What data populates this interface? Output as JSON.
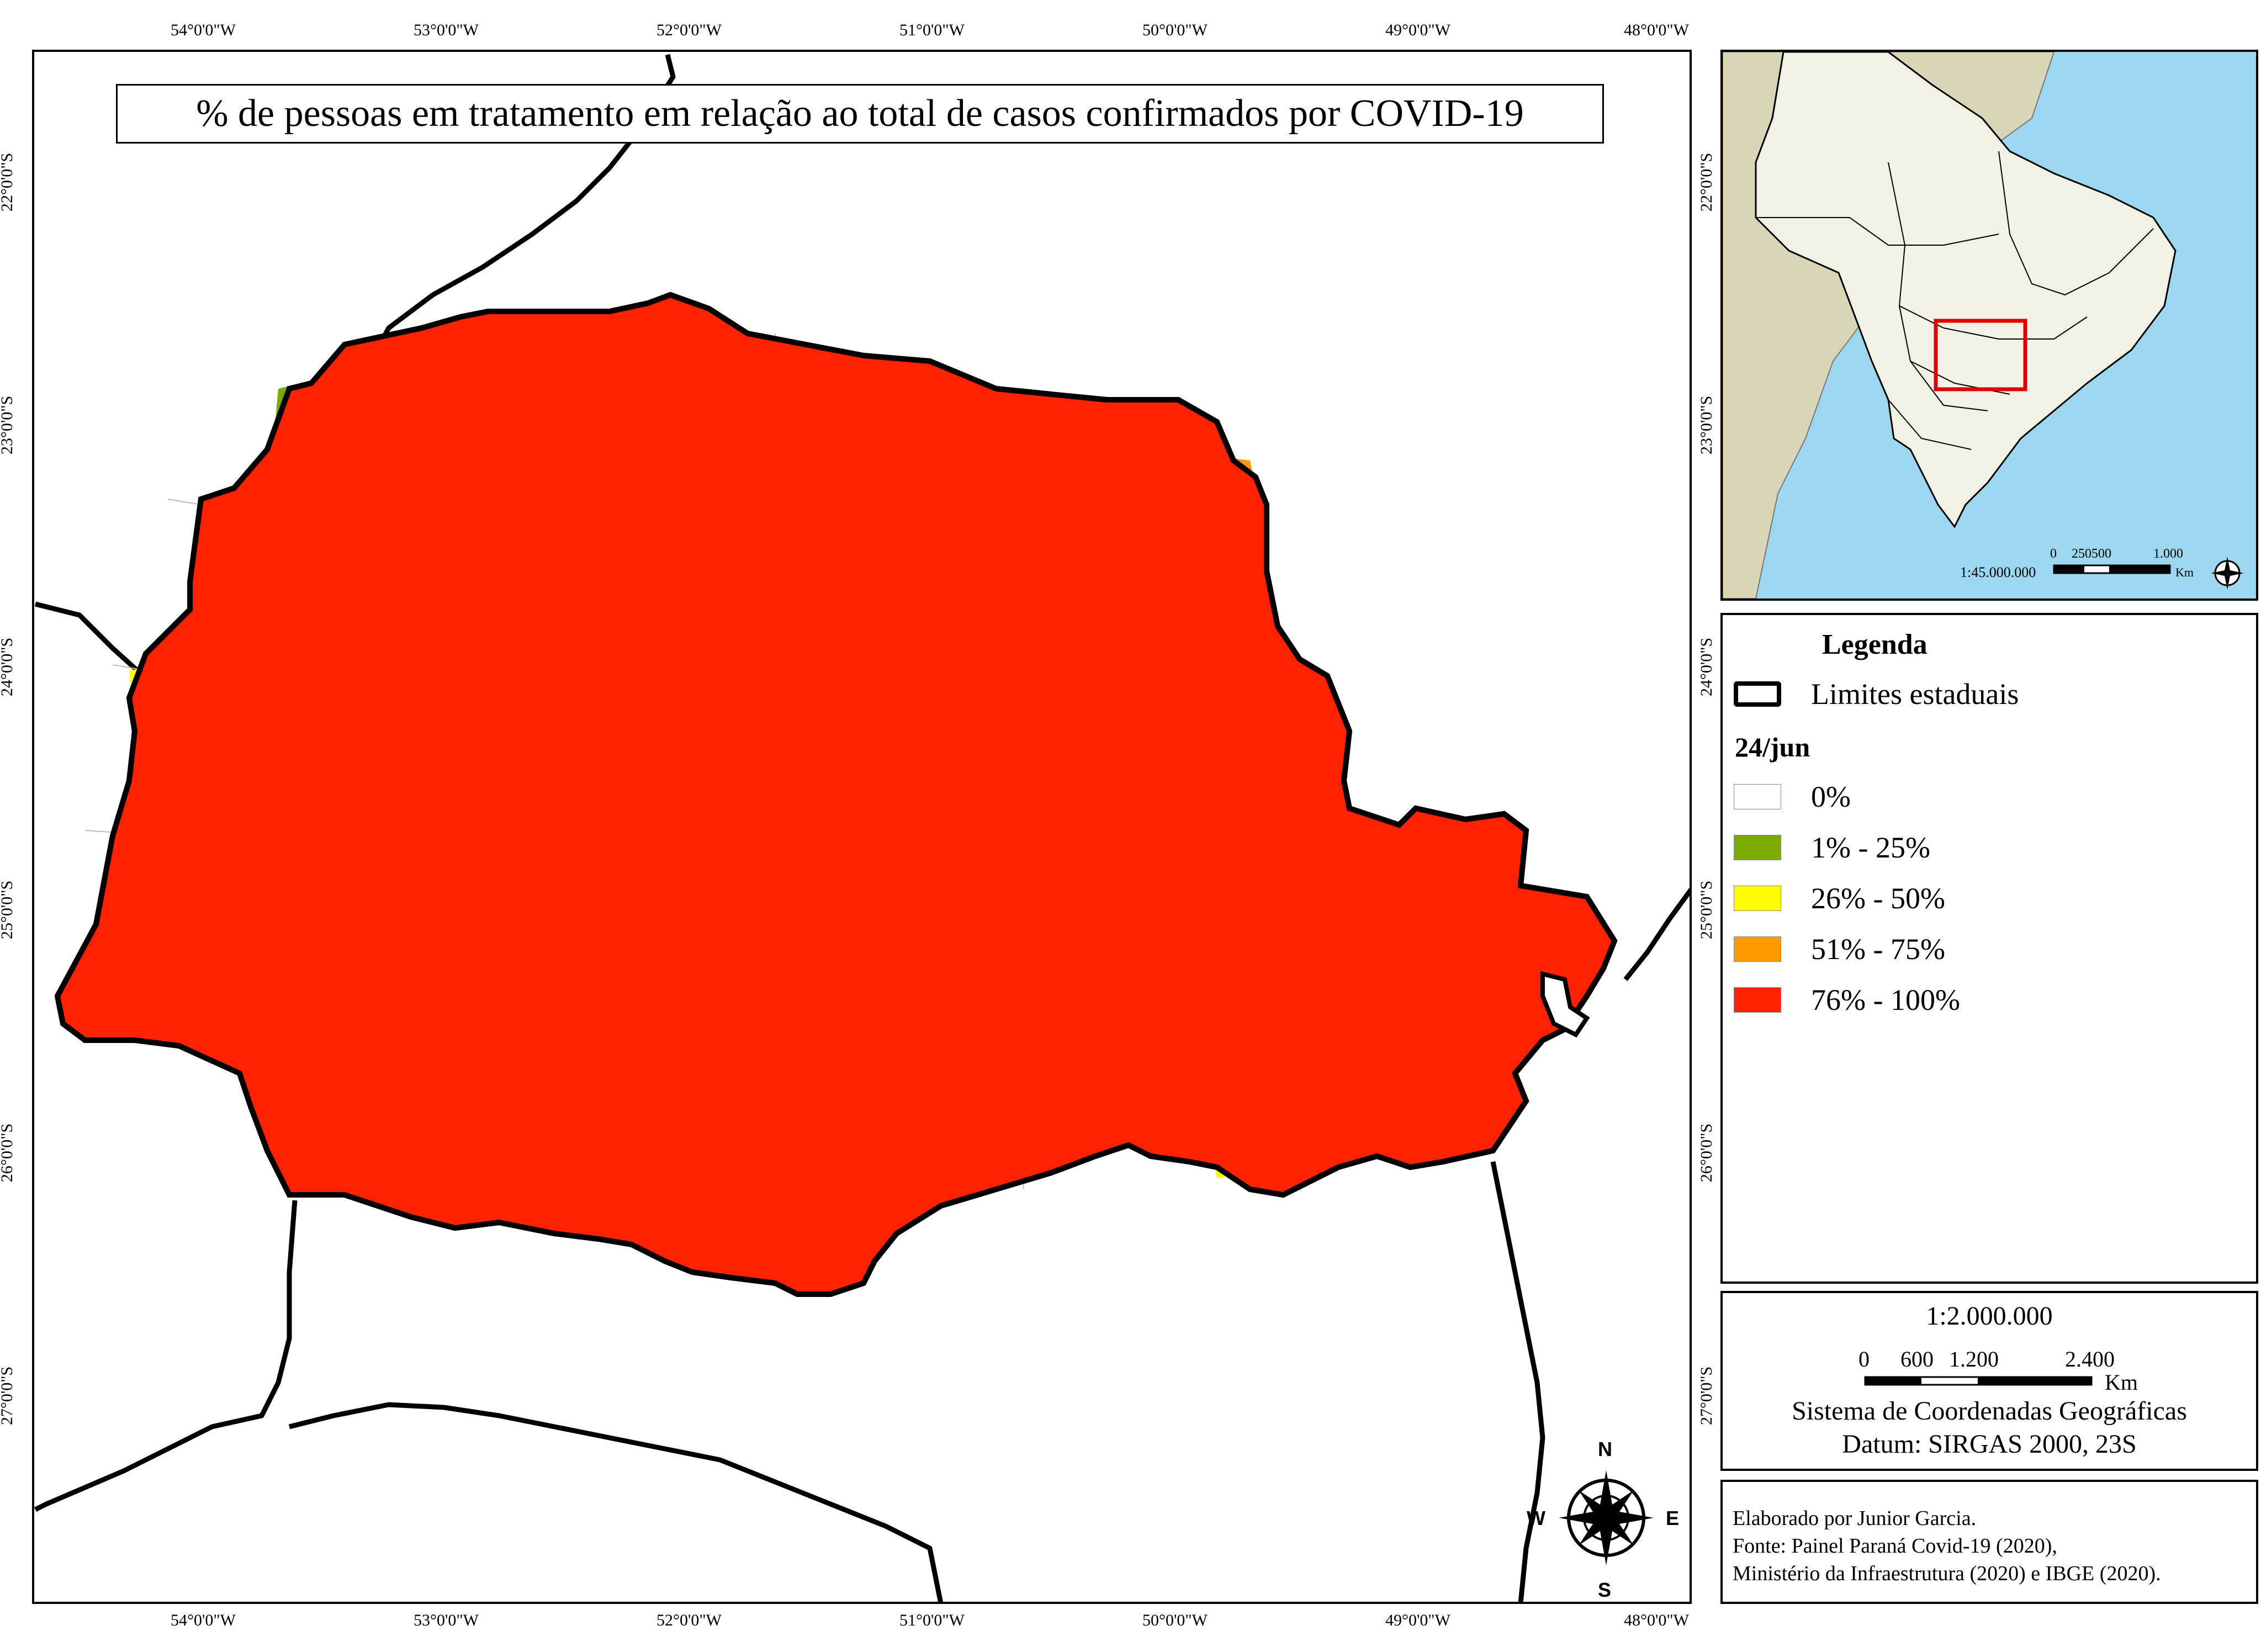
{
  "title": "% de pessoas em tratamento em relação ao total de casos confirmados por COVID-19",
  "graticule": {
    "top_labels": [
      "54°0'0\"W",
      "53°0'0\"W",
      "52°0'0\"W",
      "51°0'0\"W",
      "50°0'0\"W",
      "49°0'0\"W",
      "48°0'0\"W"
    ],
    "bottom_labels": [
      "54°0'0\"W",
      "53°0'0\"W",
      "52°0'0\"W",
      "51°0'0\"W",
      "50°0'0\"W",
      "49°0'0\"W",
      "48°0'0\"W"
    ],
    "left_labels": [
      "22°0'0\"S",
      "23°0'0\"S",
      "24°0'0\"S",
      "25°0'0\"S",
      "26°0'0\"S",
      "27°0'0\"S"
    ],
    "right_labels": [
      "22°0'0\"S",
      "23°0'0\"S",
      "24°0'0\"S",
      "25°0'0\"S",
      "26°0'0\"S",
      "27°0'0\"S"
    ]
  },
  "compass": {
    "north": "N",
    "south": "S",
    "east": "E",
    "west": "W"
  },
  "inset": {
    "scale_ratio": "1:45.000.000",
    "scale_ticks": [
      "0",
      "250500",
      "1.000"
    ],
    "scale_unit": "Km",
    "colors": {
      "ocean": "#9dd7ef",
      "brazil": "#f2f1e6",
      "neighbors": "#d9d6b8",
      "highlight": "#e00000"
    }
  },
  "legend": {
    "title": "Legenda",
    "state_limits_label": "Limites estaduais",
    "period": "24/jun",
    "classes": [
      {
        "label": "0%",
        "color": "#ffffff"
      },
      {
        "label": "1% - 25%",
        "color": "#7aab00"
      },
      {
        "label": "26% - 50%",
        "color": "#ffff00"
      },
      {
        "label": "51% - 75%",
        "color": "#ff9900"
      },
      {
        "label": "76% - 100%",
        "color": "#ff2200"
      }
    ]
  },
  "scale": {
    "ratio": "1:2.000.000",
    "ticks": [
      "0",
      "600",
      "1.200",
      "2.400"
    ],
    "unit": "Km",
    "coord_system": "Sistema de Coordenadas Geográficas",
    "datum": "Datum: SIRGAS 2000, 23S"
  },
  "credits": {
    "author": "Elaborado por Junior Garcia.",
    "source_1": "Fonte: Painel Paraná Covid-19 (2020),",
    "source_2": "Ministério da Infraestrutura (2020) e IBGE (2020)."
  }
}
